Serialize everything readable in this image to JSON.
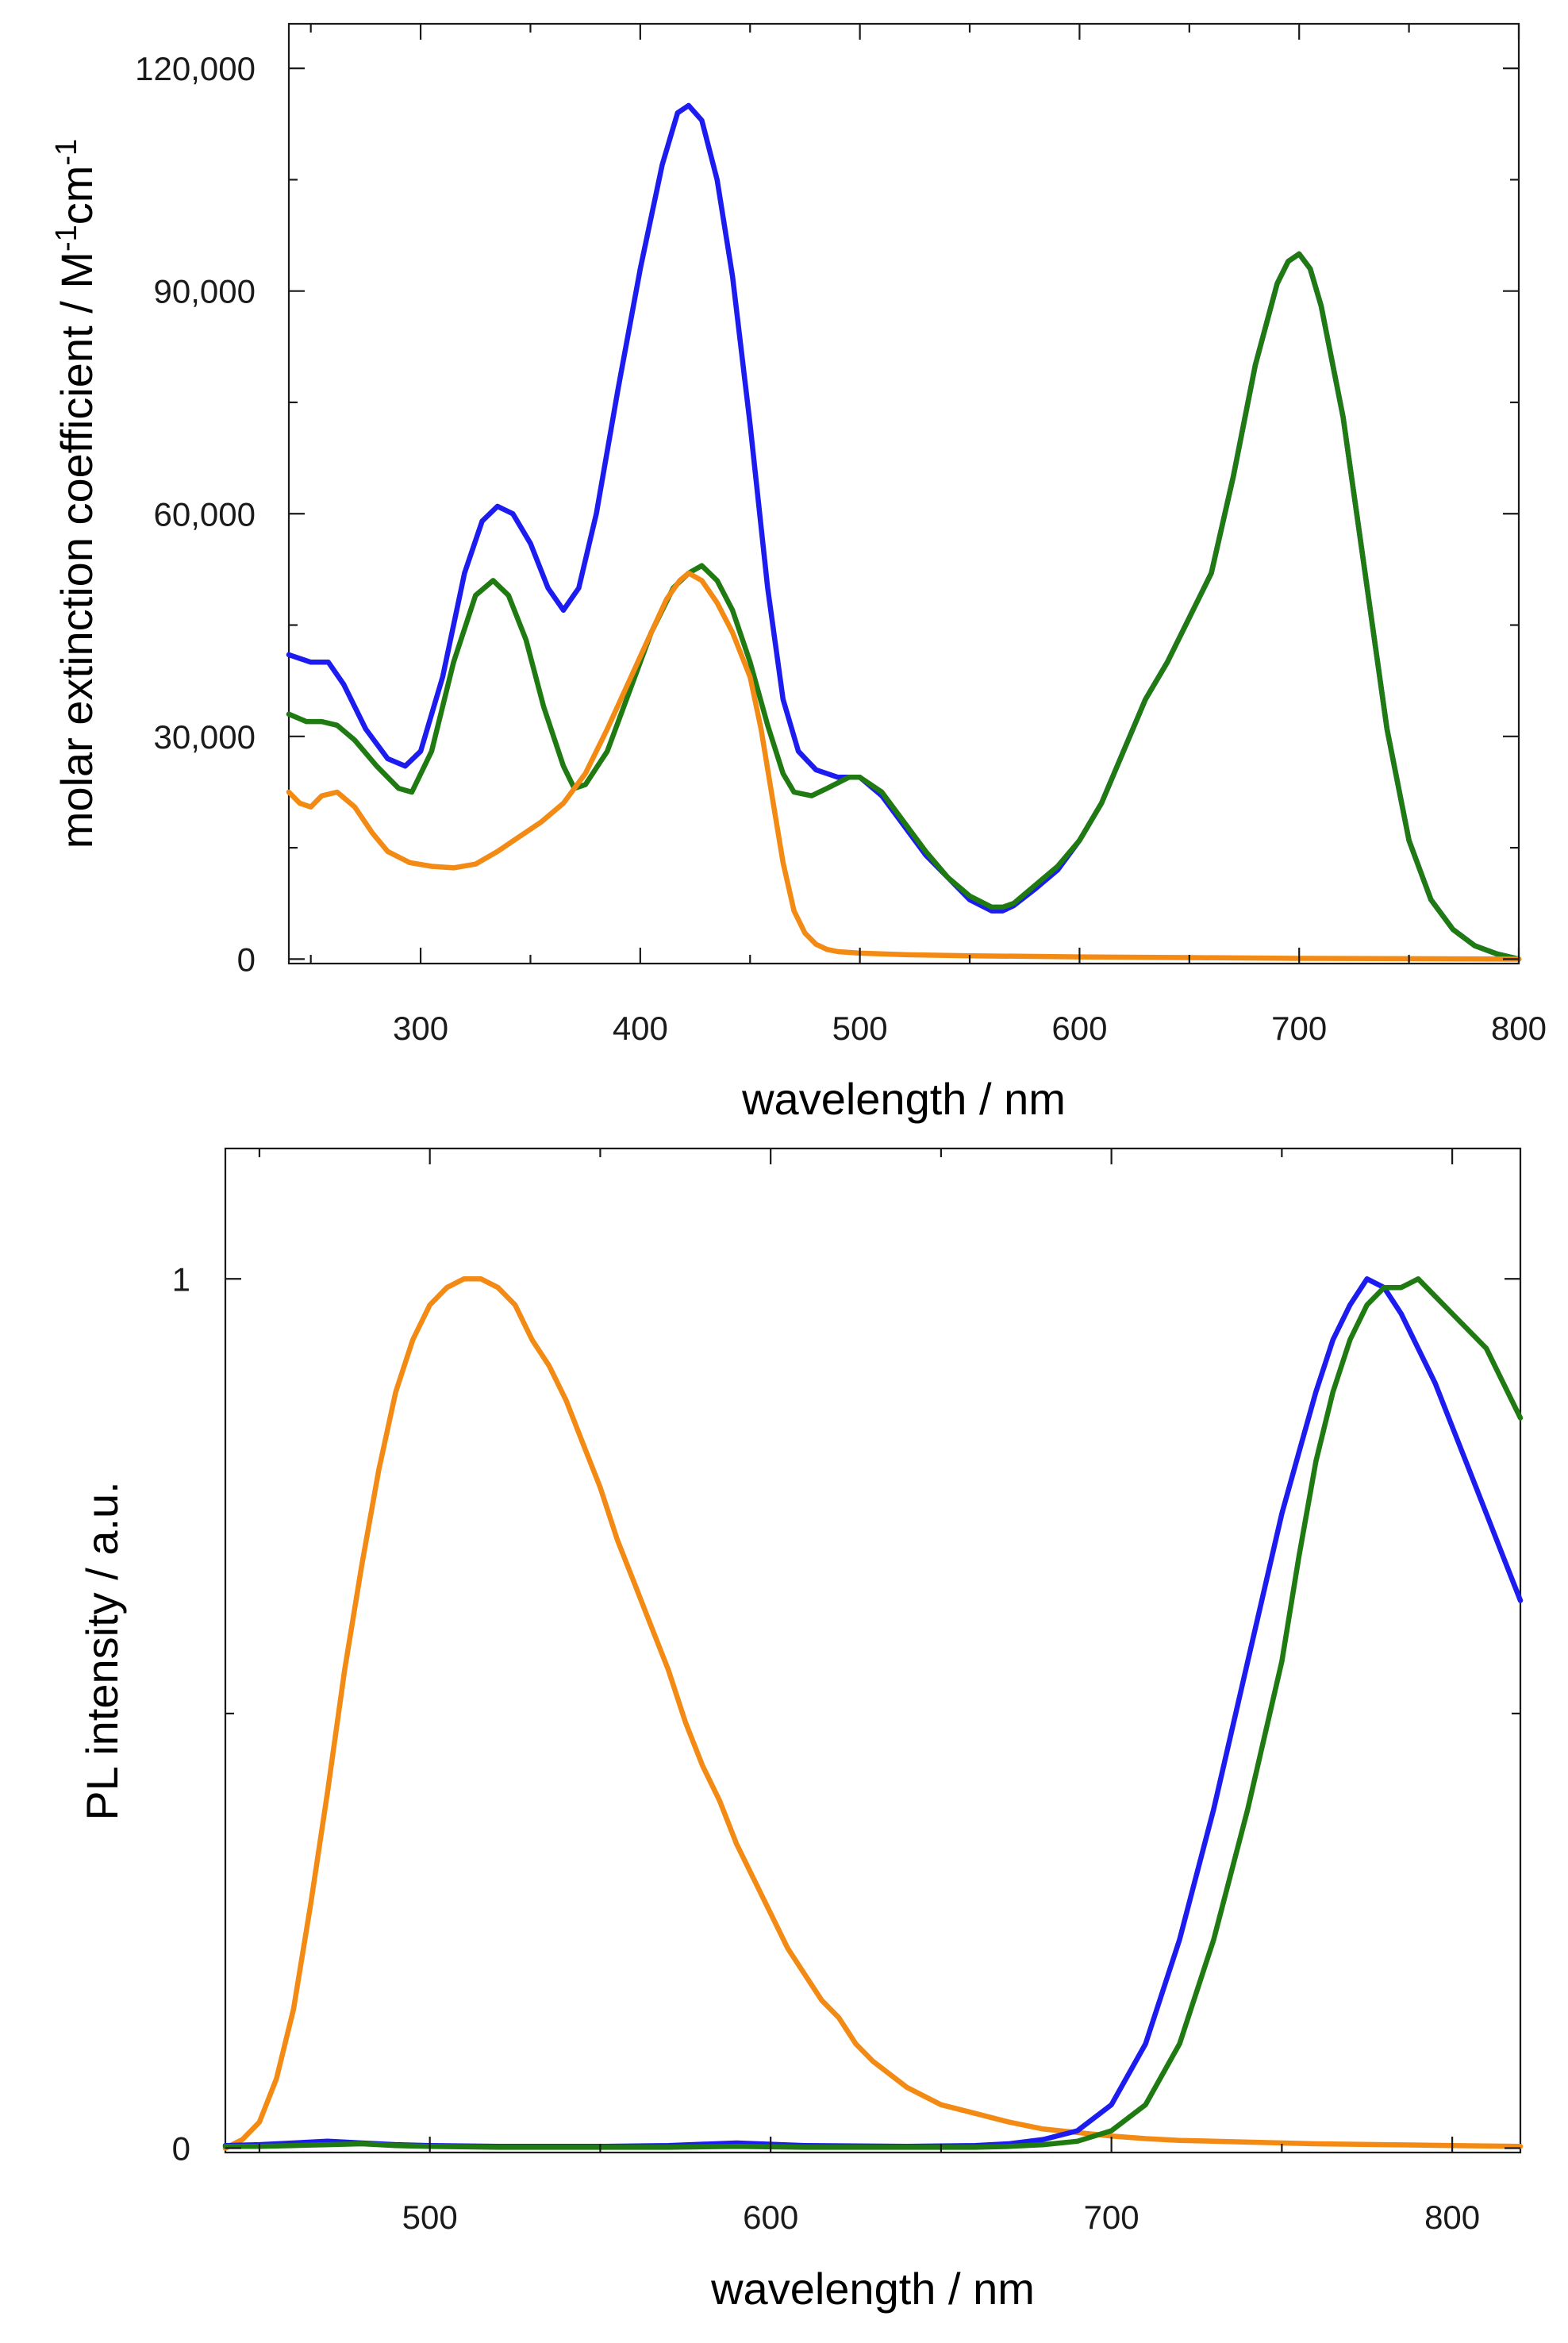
{
  "chart_data": [
    {
      "id": "absorption",
      "type": "line",
      "xlabel": "wavelength / nm",
      "ylabel": "molar extinction coefficient / M",
      "ylabel_sup1": "-1",
      "ylabel_mid": "cm",
      "ylabel_sup2": "-1",
      "xlim": [
        240,
        800
      ],
      "ylim": [
        -600,
        126000
      ],
      "x_ticks": [
        300,
        400,
        500,
        600,
        700,
        800
      ],
      "x_tick_labels": [
        "300",
        "400",
        "500",
        "600",
        "700",
        "800"
      ],
      "x_minor_ticks": [
        250,
        350,
        450,
        550,
        650,
        750
      ],
      "y_ticks": [
        0,
        30000,
        60000,
        90000,
        120000
      ],
      "y_tick_labels": [
        "0",
        "30,000",
        "60,000",
        "90,000",
        "120,000"
      ],
      "y_minor_ticks": [
        15000,
        45000,
        75000,
        105000
      ],
      "grid": false,
      "series": [
        {
          "name": "blue",
          "color": "#1c1cf0",
          "x": [
            240,
            250,
            258,
            265,
            275,
            285,
            293,
            300,
            310,
            320,
            328,
            335,
            342,
            350,
            358,
            365,
            372,
            380,
            390,
            400,
            410,
            417,
            422,
            428,
            435,
            442,
            450,
            458,
            465,
            472,
            480,
            490,
            500,
            510,
            520,
            530,
            540,
            550,
            560,
            565,
            570,
            580,
            590,
            600,
            610,
            620,
            630,
            640,
            650,
            660,
            670,
            680,
            690,
            695,
            700,
            705,
            710,
            720,
            730,
            740,
            750,
            760,
            770,
            780,
            790,
            800
          ],
          "y": [
            41000,
            40000,
            40000,
            37000,
            31000,
            27000,
            26000,
            28000,
            38000,
            52000,
            59000,
            61000,
            60000,
            56000,
            50000,
            47000,
            50000,
            60000,
            77000,
            93000,
            107000,
            114000,
            115000,
            113000,
            105000,
            92000,
            72000,
            50000,
            35000,
            28000,
            25500,
            24500,
            24500,
            22000,
            18000,
            14000,
            11000,
            8000,
            6500,
            6500,
            7200,
            9500,
            12000,
            16000,
            21000,
            28000,
            35000,
            40000,
            46000,
            52000,
            65000,
            80000,
            91000,
            94000,
            95000,
            93000,
            88000,
            73000,
            52000,
            31000,
            16000,
            8000,
            4000,
            1800,
            700,
            0
          ]
        },
        {
          "name": "green",
          "color": "#1f7a12",
          "x": [
            240,
            248,
            255,
            262,
            270,
            280,
            290,
            296,
            305,
            315,
            325,
            333,
            340,
            348,
            356,
            365,
            370,
            375,
            385,
            395,
            405,
            415,
            422,
            428,
            435,
            442,
            450,
            458,
            465,
            470,
            478,
            485,
            495,
            500,
            510,
            520,
            530,
            540,
            550,
            560,
            565,
            570,
            580,
            590,
            600,
            610,
            620,
            630,
            640,
            650,
            660,
            670,
            680,
            690,
            695,
            700,
            705,
            710,
            720,
            730,
            740,
            750,
            760,
            770,
            780,
            790,
            800
          ],
          "y": [
            33000,
            32000,
            32000,
            31500,
            29500,
            26000,
            23000,
            22500,
            28000,
            40000,
            49000,
            51000,
            49000,
            43000,
            34000,
            26000,
            23000,
            23500,
            28000,
            36000,
            44000,
            50000,
            52000,
            53000,
            51000,
            47000,
            40000,
            31500,
            25000,
            22500,
            22000,
            23000,
            24500,
            24500,
            22500,
            18500,
            14500,
            11000,
            8500,
            7000,
            7000,
            7500,
            10000,
            12500,
            16000,
            21000,
            28000,
            35000,
            40000,
            46000,
            52000,
            65000,
            80000,
            91000,
            94000,
            95000,
            93000,
            88000,
            73000,
            52000,
            31000,
            16000,
            8000,
            4000,
            1800,
            700,
            0
          ]
        },
        {
          "name": "orange",
          "color": "#f28a14",
          "x": [
            240,
            245,
            250,
            255,
            262,
            270,
            278,
            285,
            295,
            305,
            315,
            325,
            335,
            345,
            355,
            365,
            375,
            385,
            395,
            405,
            412,
            418,
            422,
            428,
            435,
            442,
            450,
            455,
            460,
            465,
            470,
            475,
            480,
            485,
            490,
            500,
            520,
            550,
            600,
            650,
            700,
            750,
            800
          ],
          "y": [
            22500,
            21000,
            20500,
            22000,
            22500,
            20500,
            17000,
            14500,
            13000,
            12500,
            12300,
            12800,
            14500,
            16500,
            18500,
            21000,
            25000,
            31000,
            37500,
            44000,
            48500,
            51000,
            52000,
            51000,
            48000,
            44000,
            38000,
            31000,
            22000,
            13000,
            6500,
            3500,
            2000,
            1300,
            1000,
            800,
            600,
            450,
            300,
            200,
            100,
            50,
            0
          ]
        }
      ]
    },
    {
      "id": "photoluminescence",
      "type": "line",
      "xlabel": "wavelength / nm",
      "ylabel": "PL intensity / a.u.",
      "xlim": [
        440,
        820
      ],
      "ylim": [
        -0.005,
        1.15
      ],
      "x_ticks": [
        500,
        600,
        700,
        800
      ],
      "x_tick_labels": [
        "500",
        "600",
        "700",
        "800"
      ],
      "x_minor_ticks": [
        450,
        550,
        650,
        750
      ],
      "y_ticks": [
        0,
        1
      ],
      "y_tick_labels": [
        "0",
        "1"
      ],
      "y_minor_ticks": [
        0.5
      ],
      "grid": false,
      "series": [
        {
          "name": "orange",
          "color": "#f28a14",
          "x": [
            440,
            445,
            450,
            455,
            460,
            465,
            470,
            475,
            480,
            485,
            490,
            495,
            500,
            505,
            510,
            515,
            520,
            525,
            530,
            535,
            540,
            545,
            550,
            555,
            560,
            565,
            570,
            575,
            580,
            585,
            590,
            595,
            600,
            605,
            610,
            615,
            620,
            625,
            630,
            640,
            650,
            660,
            670,
            680,
            690,
            700,
            710,
            720,
            740,
            760,
            780,
            800,
            820
          ],
          "y": [
            0.0,
            0.01,
            0.03,
            0.08,
            0.16,
            0.28,
            0.41,
            0.55,
            0.67,
            0.78,
            0.87,
            0.93,
            0.97,
            0.99,
            1.0,
            1.0,
            0.99,
            0.97,
            0.93,
            0.9,
            0.86,
            0.81,
            0.76,
            0.7,
            0.65,
            0.6,
            0.55,
            0.49,
            0.44,
            0.4,
            0.35,
            0.31,
            0.27,
            0.23,
            0.2,
            0.17,
            0.15,
            0.12,
            0.1,
            0.07,
            0.05,
            0.04,
            0.03,
            0.022,
            0.018,
            0.014,
            0.011,
            0.009,
            0.007,
            0.005,
            0.004,
            0.003,
            0.002
          ]
        },
        {
          "name": "blue",
          "color": "#1c1cf0",
          "x": [
            440,
            450,
            460,
            470,
            480,
            490,
            500,
            520,
            550,
            570,
            590,
            610,
            640,
            660,
            670,
            680,
            690,
            700,
            710,
            720,
            730,
            740,
            750,
            755,
            760,
            765,
            770,
            775,
            780,
            785,
            790,
            795,
            800,
            805,
            810,
            815,
            820
          ],
          "y": [
            0.003,
            0.004,
            0.006,
            0.008,
            0.006,
            0.004,
            0.003,
            0.002,
            0.002,
            0.003,
            0.006,
            0.003,
            0.002,
            0.003,
            0.005,
            0.01,
            0.02,
            0.05,
            0.12,
            0.24,
            0.39,
            0.56,
            0.73,
            0.8,
            0.87,
            0.93,
            0.97,
            1.0,
            0.99,
            0.96,
            0.92,
            0.88,
            0.83,
            0.78,
            0.73,
            0.68,
            0.63
          ]
        },
        {
          "name": "green",
          "color": "#1f7a12",
          "x": [
            440,
            450,
            460,
            470,
            480,
            490,
            500,
            520,
            550,
            570,
            590,
            610,
            640,
            660,
            670,
            680,
            690,
            700,
            710,
            720,
            730,
            740,
            750,
            755,
            760,
            765,
            770,
            775,
            780,
            785,
            790,
            795,
            800,
            805,
            810,
            815,
            820
          ],
          "y": [
            0.002,
            0.002,
            0.003,
            0.004,
            0.005,
            0.003,
            0.002,
            0.001,
            0.001,
            0.001,
            0.002,
            0.001,
            0.001,
            0.001,
            0.002,
            0.004,
            0.008,
            0.02,
            0.05,
            0.12,
            0.24,
            0.39,
            0.56,
            0.68,
            0.79,
            0.87,
            0.93,
            0.97,
            0.99,
            0.99,
            1.0,
            0.98,
            0.96,
            0.94,
            0.92,
            0.88,
            0.84
          ]
        }
      ]
    }
  ]
}
